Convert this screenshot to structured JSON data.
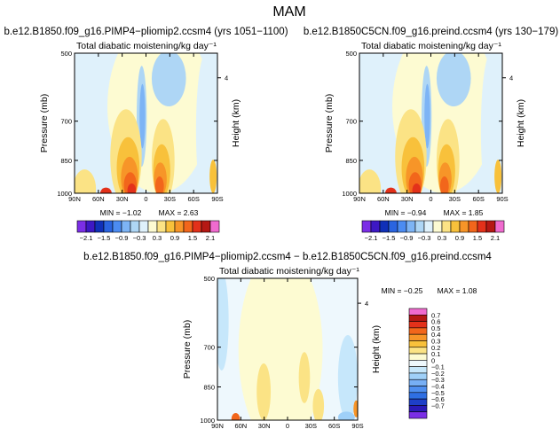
{
  "page_title": "MAM",
  "cross_section_contour_colormap": {
    "full_scale": [
      "#7b2ee6",
      "#3d18c4",
      "#1030b8",
      "#2a64e0",
      "#4c8cf2",
      "#7db4f5",
      "#aed6f5",
      "#dff1fb",
      "#fdfbd2",
      "#fbe385",
      "#f8c13b",
      "#f79528",
      "#f2661b",
      "#e3311a",
      "#b51814",
      "#f06bcf"
    ],
    "difference_scale": [
      "#7b2ee6",
      "#2a1ab8",
      "#1e3fc8",
      "#2f6fe3",
      "#4f8ff0",
      "#77aff5",
      "#9fd0f8",
      "#c6e7fb",
      "#eef8fd",
      "#fdfbd2",
      "#fbe385",
      "#f8c13b",
      "#f79528",
      "#f2661b",
      "#e3311a",
      "#b51814",
      "#f06bcf"
    ]
  },
  "chart_data": [
    {
      "type": "heatmap",
      "title": "b.e12.B1850.f09_g16.PIMP4−pliomip2.ccsm4 (yrs 1051−1100)",
      "subtitle": "Total diabatic moistening/kg day⁻¹",
      "xlabel": "",
      "ylabel": "Pressure (mb)",
      "y2label": "Height (km)",
      "x_ticks": [
        "90N",
        "60N",
        "30N",
        "0",
        "30S",
        "60S",
        "90S"
      ],
      "y_ticks": [
        "500",
        "700",
        "850",
        "1000"
      ],
      "y2_ticks": [
        "4"
      ],
      "min_label": "MIN = −1.02",
      "max_label": "MAX = 2.63",
      "colorbar_labels": [
        "−2.1",
        "−1.5",
        "−0.9",
        "−0.3",
        "0.3",
        "0.9",
        "1.5",
        "2.1"
      ],
      "min": -1.02,
      "max": 2.63
    },
    {
      "type": "heatmap",
      "title": "b.e12.B1850C5CN.f09_g16.preind.ccsm4 (yrs 130−179)",
      "subtitle": "Total diabatic moistening/kg day⁻¹",
      "xlabel": "",
      "ylabel": "Pressure (mb)",
      "y2label": "Height (km)",
      "x_ticks": [
        "90N",
        "60N",
        "30N",
        "0",
        "30S",
        "60S",
        "90S"
      ],
      "y_ticks": [
        "500",
        "700",
        "850",
        "1000"
      ],
      "y2_ticks": [
        "4"
      ],
      "min_label": "MIN = −0.94",
      "max_label": "MAX = 1.85",
      "colorbar_labels": [
        "−2.1",
        "−1.5",
        "−0.9",
        "−0.3",
        "0.3",
        "0.9",
        "1.5",
        "2.1"
      ],
      "min": -0.94,
      "max": 1.85
    },
    {
      "type": "heatmap",
      "title": "b.e12.B1850.f09_g16.PIMP4−pliomip2.ccsm4 − b.e12.B1850C5CN.f09_g16.preind.ccsm4",
      "subtitle": "Total diabatic moistening/kg day⁻¹",
      "xlabel": "",
      "ylabel": "Pressure (mb)",
      "y2label": "Height (km)",
      "x_ticks": [
        "90N",
        "60N",
        "30N",
        "0",
        "30S",
        "60S",
        "90S"
      ],
      "y_ticks": [
        "500",
        "700",
        "850",
        "1000"
      ],
      "y2_ticks": [
        "4"
      ],
      "min_label": "MIN = −0.25",
      "max_label": "MAX = 1.08",
      "colorbar_labels": [
        "0.7",
        "0.6",
        "0.5",
        "0.4",
        "0.3",
        "0.2",
        "0.1",
        "0",
        "−0.1",
        "−0.2",
        "−0.3",
        "−0.4",
        "−0.5",
        "−0.6",
        "−0.7"
      ],
      "min": -0.25,
      "max": 1.08
    }
  ]
}
